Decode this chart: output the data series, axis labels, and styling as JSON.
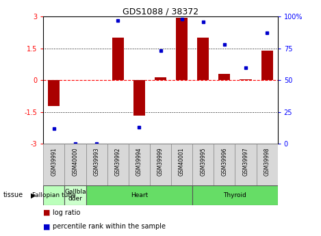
{
  "title": "GDS1088 / 38372",
  "samples": [
    "GSM39991",
    "GSM40000",
    "GSM39993",
    "GSM39992",
    "GSM39994",
    "GSM39999",
    "GSM40001",
    "GSM39995",
    "GSM39996",
    "GSM39997",
    "GSM39998"
  ],
  "log_ratio": [
    -1.2,
    0.0,
    0.0,
    2.0,
    -1.65,
    0.15,
    2.95,
    2.0,
    0.3,
    0.05,
    1.4
  ],
  "percentile_rank": [
    12,
    0,
    0,
    97,
    13,
    73,
    98,
    96,
    78,
    60,
    87
  ],
  "tissues": [
    {
      "label": "Fallopian tube",
      "start": 0,
      "end": 1,
      "color": "#bbffbb"
    },
    {
      "label": "Gallbla\ndder",
      "start": 1,
      "end": 2,
      "color": "#ccffcc"
    },
    {
      "label": "Heart",
      "start": 2,
      "end": 7,
      "color": "#66dd66"
    },
    {
      "label": "Thyroid",
      "start": 7,
      "end": 11,
      "color": "#66dd66"
    }
  ],
  "ylim": [
    -3,
    3
  ],
  "y2lim": [
    0,
    100
  ],
  "yticks": [
    -3,
    -1.5,
    0,
    1.5,
    3
  ],
  "y2ticks": [
    0,
    25,
    50,
    75,
    100
  ],
  "ytick_labels": [
    "-3",
    "-1.5",
    "0",
    "1.5",
    "3"
  ],
  "y2tick_labels": [
    "0",
    "25",
    "50",
    "75",
    "100%"
  ],
  "bar_color": "#aa0000",
  "dot_color": "#0000cc",
  "hline_dotted": [
    -1.5,
    1.5
  ],
  "plot_bg_color": "#ffffff",
  "fig_bg": "#ffffff"
}
